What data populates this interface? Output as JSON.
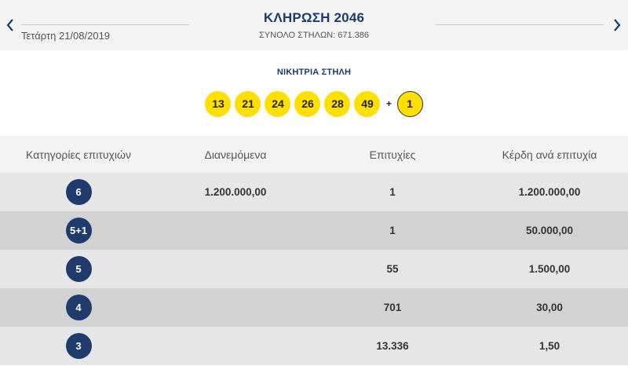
{
  "header": {
    "date": "Τετάρτη 21/08/2019",
    "draw_title": "ΚΛΗΡΩΣΗ 2046",
    "total_columns": "ΣΥΝΟΛΟ ΣΤΗΛΩΝ: 671.386",
    "prev_icon": "chevron-left-icon",
    "next_icon": "chevron-right-icon"
  },
  "winning": {
    "label": "ΝΙΚΗΤΡΙΑ ΣΤΗΛΗ",
    "numbers": [
      "13",
      "21",
      "24",
      "26",
      "28",
      "49"
    ],
    "plus": "+",
    "bonus": "1"
  },
  "table": {
    "headers": [
      "Κατηγορίες επιτυχιών",
      "Διανεμόμενα",
      "Επιτυχίες",
      "Κέρδη ανά επιτυχία"
    ],
    "rows": [
      {
        "category": "6",
        "distributed": "1.200.000,00",
        "winners": "1",
        "prize": "1.200.000,00"
      },
      {
        "category": "5+1",
        "distributed": "",
        "winners": "1",
        "prize": "50.000,00"
      },
      {
        "category": "5",
        "distributed": "",
        "winners": "55",
        "prize": "1.500,00"
      },
      {
        "category": "4",
        "distributed": "",
        "winners": "701",
        "prize": "30,00"
      },
      {
        "category": "3",
        "distributed": "",
        "winners": "13.336",
        "prize": "1,50"
      }
    ]
  },
  "colors": {
    "navy": "#1e3b6b",
    "ball_yellow": "#ffdf00",
    "row_light": "#e6e6e6",
    "row_dark": "#d2d2d2"
  }
}
